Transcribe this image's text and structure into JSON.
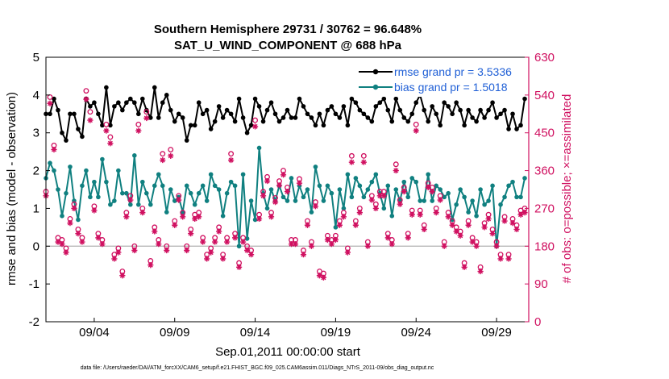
{
  "chart_data": {
    "type": "line",
    "title": "Southern Hemisphere 29731 / 30762 = 96.648%",
    "subtitle": "SAT_U_WIND_COMPONENT @ 688 hPa",
    "xlabel": "Sep.01,2011 00:00:00 start",
    "ylabel_left": "rmse and bias (model - observation)",
    "ylabel_right": "# of obs: o=possible; ×=assimilated",
    "x_ticks": [
      "09/04",
      "09/09",
      "09/14",
      "09/19",
      "09/24",
      "09/29"
    ],
    "x_tick_days": [
      4,
      9,
      14,
      19,
      24,
      29
    ],
    "xlim": [
      1.0,
      31.0
    ],
    "ylim_left": [
      -2,
      5
    ],
    "yticks_left": [
      -2,
      -1,
      0,
      1,
      2,
      3,
      4,
      5
    ],
    "ylim_right": [
      0,
      630
    ],
    "yticks_right": [
      0,
      90,
      180,
      270,
      360,
      450,
      540,
      630
    ],
    "grid": false,
    "legend_position": "top-right",
    "colors": {
      "rmse": "#000000",
      "bias": "#108080",
      "obs": "#d01060",
      "right_axis": "#d01060",
      "legend_text": "#1f5fd6",
      "zero_line": "#b0b0b0"
    },
    "series": [
      {
        "name": "rmse grand pr = 3.5336",
        "color": "#000000",
        "x": [
          1.0,
          1.25,
          1.5,
          1.75,
          2.0,
          2.25,
          2.5,
          2.75,
          3.0,
          3.25,
          3.5,
          3.75,
          4.0,
          4.25,
          4.5,
          4.75,
          5.0,
          5.25,
          5.5,
          5.75,
          6.0,
          6.25,
          6.5,
          6.75,
          7.0,
          7.25,
          7.5,
          7.75,
          8.0,
          8.25,
          8.5,
          8.75,
          9.0,
          9.25,
          9.5,
          9.75,
          10.0,
          10.25,
          10.5,
          10.75,
          11.0,
          11.25,
          11.5,
          11.75,
          12.0,
          12.25,
          12.5,
          12.75,
          13.0,
          13.25,
          13.5,
          13.75,
          14.0,
          14.25,
          14.5,
          14.75,
          15.0,
          15.25,
          15.5,
          15.75,
          16.0,
          16.25,
          16.5,
          16.75,
          17.0,
          17.25,
          17.5,
          17.75,
          18.0,
          18.25,
          18.5,
          18.75,
          19.0,
          19.25,
          19.5,
          19.75,
          20.0,
          20.25,
          20.5,
          20.75,
          21.0,
          21.25,
          21.5,
          21.75,
          22.0,
          22.25,
          22.5,
          22.75,
          23.0,
          23.25,
          23.5,
          23.75,
          24.0,
          24.25,
          24.5,
          24.75,
          25.0,
          25.25,
          25.5,
          25.75,
          26.0,
          26.25,
          26.5,
          26.75,
          27.0,
          27.25,
          27.5,
          27.75,
          28.0,
          28.25,
          28.5,
          28.75,
          29.0,
          29.25,
          29.5,
          29.75,
          30.0,
          30.25,
          30.5,
          30.75
        ],
        "values": [
          3.5,
          3.5,
          3.9,
          3.6,
          3.0,
          2.8,
          3.5,
          3.5,
          3.1,
          2.9,
          3.9,
          3.7,
          3.8,
          3.5,
          3.2,
          4.2,
          3.2,
          3.7,
          3.8,
          3.6,
          3.8,
          3.9,
          3.8,
          3.5,
          3.9,
          3.6,
          3.4,
          4.2,
          3.4,
          3.8,
          4.0,
          3.6,
          3.3,
          3.5,
          3.4,
          2.8,
          3.2,
          3.2,
          3.8,
          3.5,
          3.6,
          3.1,
          3.3,
          3.7,
          3.4,
          3.6,
          3.5,
          3.3,
          3.9,
          3.4,
          3.0,
          3.2,
          3.9,
          3.7,
          3.3,
          3.6,
          3.8,
          3.5,
          3.3,
          3.4,
          3.6,
          3.4,
          3.4,
          3.9,
          3.7,
          3.5,
          3.4,
          3.2,
          3.5,
          3.2,
          3.6,
          3.7,
          3.5,
          3.4,
          3.7,
          3.2,
          3.9,
          3.8,
          3.6,
          3.5,
          3.4,
          3.3,
          3.7,
          3.8,
          3.9,
          3.6,
          3.3,
          3.9,
          3.6,
          3.4,
          3.3,
          3.5,
          3.8,
          4.0,
          3.6,
          3.3,
          3.7,
          3.5,
          3.2,
          3.8,
          3.7,
          3.5,
          3.8,
          3.6,
          3.2,
          3.6,
          3.4,
          3.3,
          3.6,
          3.4,
          3.6,
          3.8,
          3.4,
          3.5,
          3.6,
          3.1,
          3.5,
          3.1,
          3.2,
          3.9
        ]
      },
      {
        "name": "bias grand pr = 1.5018",
        "color": "#108080",
        "x": [
          1.0,
          1.25,
          1.5,
          1.75,
          2.0,
          2.25,
          2.5,
          2.75,
          3.0,
          3.25,
          3.5,
          3.75,
          4.0,
          4.25,
          4.5,
          4.75,
          5.0,
          5.25,
          5.5,
          5.75,
          6.0,
          6.25,
          6.5,
          6.75,
          7.0,
          7.25,
          7.5,
          7.75,
          8.0,
          8.25,
          8.5,
          8.75,
          9.0,
          9.25,
          9.5,
          9.75,
          10.0,
          10.25,
          10.5,
          10.75,
          11.0,
          11.25,
          11.5,
          11.75,
          12.0,
          12.25,
          12.5,
          12.75,
          13.0,
          13.25,
          13.5,
          13.75,
          14.0,
          14.25,
          14.5,
          14.75,
          15.0,
          15.25,
          15.5,
          15.75,
          16.0,
          16.25,
          16.5,
          16.75,
          17.0,
          17.25,
          17.5,
          17.75,
          18.0,
          18.25,
          18.5,
          18.75,
          19.0,
          19.25,
          19.5,
          19.75,
          20.0,
          20.25,
          20.5,
          20.75,
          21.0,
          21.25,
          21.5,
          21.75,
          22.0,
          22.25,
          22.5,
          22.75,
          23.0,
          23.25,
          23.5,
          23.75,
          24.0,
          24.25,
          24.5,
          24.75,
          25.0,
          25.25,
          25.5,
          25.75,
          26.0,
          26.25,
          26.5,
          26.75,
          27.0,
          27.25,
          27.5,
          27.75,
          28.0,
          28.25,
          28.5,
          28.75,
          29.0,
          29.25,
          29.5,
          29.75,
          30.0,
          30.25,
          30.5,
          30.75
        ],
        "values": [
          1.8,
          2.2,
          2.0,
          1.5,
          0.8,
          1.4,
          2.1,
          1.2,
          0.7,
          1.6,
          2.0,
          1.3,
          1.7,
          1.3,
          2.3,
          1.7,
          1.1,
          1.2,
          2.0,
          1.4,
          1.4,
          1.1,
          2.4,
          1.1,
          1.7,
          1.4,
          1.1,
          1.6,
          1.9,
          1.6,
          0.9,
          1.5,
          1.2,
          1.3,
          0.9,
          1.6,
          1.4,
          1.1,
          1.4,
          1.6,
          1.2,
          1.9,
          1.6,
          1.5,
          0.8,
          1.4,
          1.7,
          1.6,
          0.0,
          1.9,
          0.2,
          1.2,
          0.7,
          2.6,
          1.4,
          1.0,
          1.5,
          1.2,
          1.6,
          1.3,
          1.2,
          1.8,
          1.2,
          1.6,
          1.3,
          1.5,
          0.9,
          2.1,
          1.6,
          1.2,
          1.6,
          1.4,
          0.5,
          1.5,
          1.0,
          1.9,
          1.3,
          1.8,
          1.6,
          1.3,
          1.5,
          1.7,
          1.9,
          1.4,
          1.0,
          1.6,
          0.8,
          1.5,
          1.2,
          1.7,
          1.3,
          1.8,
          1.7,
          1.2,
          1.2,
          1.9,
          1.2,
          1.6,
          1.5,
          1.3,
          1.4,
          0.7,
          1.1,
          1.5,
          1.3,
          0.9,
          1.2,
          0.8,
          1.5,
          1.1,
          1.2,
          1.6,
          0.0,
          1.1,
          1.3,
          1.6,
          1.7,
          1.3,
          1.3,
          1.8
        ]
      }
    ],
    "obs_possible": {
      "marker": "o",
      "x": [
        1.0,
        1.25,
        1.5,
        1.75,
        2.0,
        2.25,
        2.5,
        2.75,
        3.0,
        3.25,
        3.5,
        3.75,
        4.0,
        4.25,
        4.5,
        4.75,
        5.0,
        5.25,
        5.5,
        5.75,
        6.0,
        6.25,
        6.5,
        6.75,
        7.0,
        7.25,
        7.5,
        7.75,
        8.0,
        8.25,
        8.5,
        8.75,
        9.0,
        9.25,
        9.5,
        9.75,
        10.0,
        10.25,
        10.5,
        10.75,
        11.0,
        11.25,
        11.5,
        11.75,
        12.0,
        12.25,
        12.5,
        12.75,
        13.0,
        13.25,
        13.5,
        13.75,
        14.0,
        14.25,
        14.5,
        14.75,
        15.0,
        15.25,
        15.5,
        15.75,
        16.0,
        16.25,
        16.5,
        16.75,
        17.0,
        17.25,
        17.5,
        17.75,
        18.0,
        18.25,
        18.5,
        18.75,
        19.0,
        19.25,
        19.5,
        19.75,
        20.0,
        20.25,
        20.5,
        20.75,
        21.0,
        21.25,
        21.5,
        21.75,
        22.0,
        22.25,
        22.5,
        22.75,
        23.0,
        23.25,
        23.5,
        23.75,
        24.0,
        24.25,
        24.5,
        24.75,
        25.0,
        25.25,
        25.5,
        25.75,
        26.0,
        26.25,
        26.5,
        26.75,
        27.0,
        27.25,
        27.5,
        27.75,
        28.0,
        28.25,
        28.5,
        28.75,
        29.0,
        29.25,
        29.5,
        29.75,
        30.0,
        30.25,
        30.5,
        30.75
      ],
      "values": [
        310,
        535,
        420,
        200,
        195,
        175,
        245,
        280,
        220,
        200,
        550,
        500,
        275,
        210,
        195,
        470,
        440,
        160,
        175,
        120,
        260,
        300,
        180,
        470,
        270,
        500,
        145,
        225,
        195,
        400,
        180,
        410,
        240,
        300,
        260,
        180,
        220,
        255,
        260,
        200,
        160,
        175,
        200,
        225,
        160,
        200,
        400,
        210,
        140,
        200,
        180,
        170,
        480,
        255,
        310,
        345,
        260,
        295,
        335,
        360,
        320,
        195,
        195,
        340,
        170,
        240,
        190,
        285,
        120,
        115,
        205,
        195,
        205,
        240,
        260,
        175,
        395,
        240,
        270,
        395,
        190,
        300,
        280,
        310,
        310,
        210,
        195,
        375,
        290,
        320,
        210,
        265,
        470,
        265,
        230,
        330,
        320,
        270,
        300,
        190,
        260,
        240,
        225,
        215,
        140,
        240,
        200,
        190,
        130,
        235,
        255,
        220,
        190,
        160,
        250,
        160,
        245,
        230,
        265,
        270
      ]
    },
    "obs_assimilated": {
      "marker": "*",
      "x": [
        1.0,
        1.25,
        1.5,
        1.75,
        2.0,
        2.25,
        2.5,
        2.75,
        3.0,
        3.25,
        3.5,
        3.75,
        4.0,
        4.25,
        4.5,
        4.75,
        5.0,
        5.25,
        5.5,
        5.75,
        6.0,
        6.25,
        6.5,
        6.75,
        7.0,
        7.25,
        7.5,
        7.75,
        8.0,
        8.25,
        8.5,
        8.75,
        9.0,
        9.25,
        9.5,
        9.75,
        10.0,
        10.25,
        10.5,
        10.75,
        11.0,
        11.25,
        11.5,
        11.75,
        12.0,
        12.25,
        12.5,
        12.75,
        13.0,
        13.25,
        13.5,
        13.75,
        14.0,
        14.25,
        14.5,
        14.75,
        15.0,
        15.25,
        15.5,
        15.75,
        16.0,
        16.25,
        16.5,
        16.75,
        17.0,
        17.25,
        17.5,
        17.75,
        18.0,
        18.25,
        18.5,
        18.75,
        19.0,
        19.25,
        19.5,
        19.75,
        20.0,
        20.25,
        20.5,
        20.75,
        21.0,
        21.25,
        21.5,
        21.75,
        22.0,
        22.25,
        22.5,
        22.75,
        23.0,
        23.25,
        23.5,
        23.75,
        24.0,
        24.25,
        24.5,
        24.75,
        25.0,
        25.25,
        25.5,
        25.75,
        26.0,
        26.25,
        26.5,
        26.75,
        27.0,
        27.25,
        27.5,
        27.75,
        28.0,
        28.25,
        28.5,
        28.75,
        29.0,
        29.25,
        29.5,
        29.75,
        30.0,
        30.25,
        30.5,
        30.75
      ],
      "values": [
        300,
        520,
        410,
        190,
        185,
        165,
        235,
        270,
        210,
        190,
        530,
        480,
        265,
        200,
        185,
        455,
        425,
        150,
        165,
        110,
        250,
        290,
        170,
        455,
        260,
        485,
        135,
        215,
        185,
        385,
        170,
        395,
        230,
        290,
        250,
        170,
        210,
        245,
        250,
        190,
        150,
        165,
        190,
        215,
        150,
        190,
        385,
        200,
        130,
        190,
        170,
        160,
        465,
        245,
        300,
        335,
        250,
        285,
        325,
        350,
        310,
        185,
        185,
        330,
        160,
        230,
        180,
        275,
        110,
        105,
        195,
        185,
        195,
        230,
        250,
        165,
        380,
        230,
        260,
        380,
        180,
        290,
        270,
        300,
        300,
        200,
        185,
        360,
        280,
        310,
        200,
        255,
        455,
        255,
        220,
        320,
        310,
        260,
        290,
        180,
        250,
        230,
        215,
        205,
        130,
        230,
        190,
        180,
        120,
        225,
        245,
        210,
        180,
        150,
        240,
        150,
        235,
        220,
        255,
        260
      ]
    },
    "footnote": "data file: /Users/raeder/DAI/ATM_forcXX/CAM6_setup/f.e21.FHIST_BGC.f09_025.CAM6assim.011/Diags_NTrS_2011-09/obs_diag_output.nc"
  }
}
